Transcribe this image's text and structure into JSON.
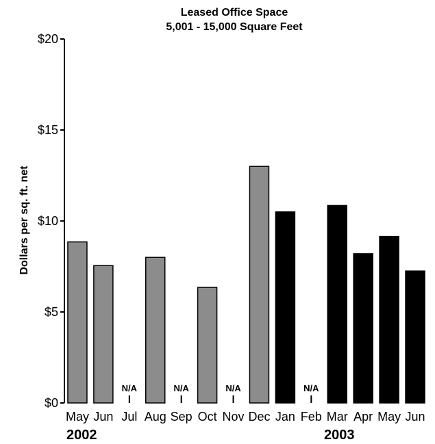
{
  "chart_data": {
    "type": "bar",
    "title": "Leased Office Space",
    "subtitle": "5,001 - 15,000 Square Feet",
    "ylabel": "Dollars per sq. ft. net",
    "xlabel": "",
    "ylim": [
      0,
      20
    ],
    "yticks": [
      "$0",
      "$5",
      "$10",
      "$15",
      "$20"
    ],
    "yticks_values": [
      0,
      5,
      10,
      15,
      20
    ],
    "categories": [
      "May",
      "Jun",
      "Jul",
      "Aug",
      "Sep",
      "Oct",
      "Nov",
      "Dec",
      "Jan",
      "Feb",
      "Mar",
      "Apr",
      "May",
      "Jun"
    ],
    "values": [
      8.85,
      7.55,
      null,
      8.0,
      null,
      6.35,
      null,
      13.0,
      10.5,
      null,
      10.85,
      8.2,
      9.15,
      7.25
    ],
    "na_label": "N/A",
    "year_labels": [
      "2002",
      "2003"
    ],
    "year_of_category": [
      "2002",
      "2002",
      "2002",
      "2002",
      "2002",
      "2002",
      "2002",
      "2002",
      "2003",
      "2003",
      "2003",
      "2003",
      "2003",
      "2003"
    ],
    "colors": {
      "2002": "#8c8c8c",
      "2003": "#000000",
      "axis": "#000000"
    },
    "grid": false,
    "legend": "none"
  }
}
